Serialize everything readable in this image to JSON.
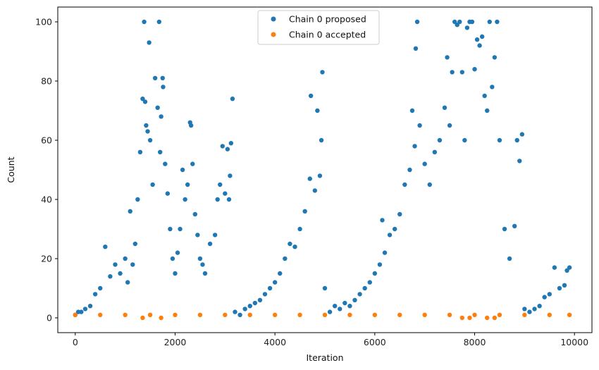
{
  "chart_data": {
    "type": "scatter",
    "title": "",
    "xlabel": "Iteration",
    "ylabel": "Count",
    "xlim": [
      -350,
      10350
    ],
    "ylim": [
      -5,
      105
    ],
    "xticks": [
      0,
      2000,
      4000,
      6000,
      8000,
      10000
    ],
    "yticks": [
      0,
      20,
      40,
      60,
      80,
      100
    ],
    "x_tick_labels": [
      "0",
      "2000",
      "4000",
      "6000",
      "8000",
      "10000"
    ],
    "y_tick_labels": [
      "0",
      "20",
      "40",
      "60",
      "80",
      "100"
    ],
    "grid": false,
    "legend": {
      "placement": "top-center"
    },
    "series": [
      {
        "name": "Chain 0 proposed",
        "color": "#1f77b4",
        "marker": "circle",
        "points": [
          [
            0,
            1
          ],
          [
            60,
            2
          ],
          [
            120,
            2
          ],
          [
            200,
            3
          ],
          [
            300,
            4
          ],
          [
            400,
            8
          ],
          [
            500,
            10
          ],
          [
            600,
            24
          ],
          [
            700,
            14
          ],
          [
            800,
            18
          ],
          [
            900,
            15
          ],
          [
            1000,
            20
          ],
          [
            1050,
            12
          ],
          [
            1100,
            36
          ],
          [
            1150,
            18
          ],
          [
            1200,
            25
          ],
          [
            1250,
            40
          ],
          [
            1300,
            56
          ],
          [
            1350,
            74
          ],
          [
            1380,
            100
          ],
          [
            1400,
            73
          ],
          [
            1420,
            65
          ],
          [
            1450,
            63
          ],
          [
            1480,
            93
          ],
          [
            1500,
            60
          ],
          [
            1550,
            45
          ],
          [
            1600,
            81
          ],
          [
            1650,
            71
          ],
          [
            1680,
            100
          ],
          [
            1700,
            56
          ],
          [
            1720,
            68
          ],
          [
            1750,
            81
          ],
          [
            1760,
            78
          ],
          [
            1800,
            52
          ],
          [
            1850,
            42
          ],
          [
            1900,
            30
          ],
          [
            1950,
            20
          ],
          [
            2000,
            15
          ],
          [
            2050,
            22
          ],
          [
            2100,
            30
          ],
          [
            2150,
            50
          ],
          [
            2200,
            40
          ],
          [
            2250,
            45
          ],
          [
            2300,
            66
          ],
          [
            2320,
            65
          ],
          [
            2350,
            52
          ],
          [
            2400,
            35
          ],
          [
            2450,
            28
          ],
          [
            2500,
            20
          ],
          [
            2550,
            18
          ],
          [
            2600,
            15
          ],
          [
            2700,
            25
          ],
          [
            2800,
            28
          ],
          [
            2850,
            40
          ],
          [
            2900,
            45
          ],
          [
            2950,
            58
          ],
          [
            3000,
            42
          ],
          [
            3050,
            57
          ],
          [
            3080,
            40
          ],
          [
            3100,
            48
          ],
          [
            3120,
            59
          ],
          [
            3150,
            74
          ],
          [
            3200,
            2
          ],
          [
            3300,
            1
          ],
          [
            3400,
            3
          ],
          [
            3500,
            4
          ],
          [
            3600,
            5
          ],
          [
            3700,
            6
          ],
          [
            3800,
            8
          ],
          [
            3900,
            10
          ],
          [
            4000,
            12
          ],
          [
            4100,
            15
          ],
          [
            4200,
            20
          ],
          [
            4300,
            25
          ],
          [
            4400,
            24
          ],
          [
            4500,
            30
          ],
          [
            4600,
            36
          ],
          [
            4700,
            47
          ],
          [
            4720,
            75
          ],
          [
            4800,
            43
          ],
          [
            4850,
            70
          ],
          [
            4900,
            48
          ],
          [
            4930,
            60
          ],
          [
            4950,
            83
          ],
          [
            5000,
            10
          ],
          [
            5100,
            2
          ],
          [
            5200,
            4
          ],
          [
            5300,
            3
          ],
          [
            5400,
            5
          ],
          [
            5500,
            4
          ],
          [
            5600,
            6
          ],
          [
            5700,
            8
          ],
          [
            5800,
            10
          ],
          [
            5900,
            12
          ],
          [
            6000,
            15
          ],
          [
            6100,
            18
          ],
          [
            6150,
            33
          ],
          [
            6200,
            22
          ],
          [
            6300,
            28
          ],
          [
            6400,
            30
          ],
          [
            6500,
            35
          ],
          [
            6600,
            45
          ],
          [
            6700,
            50
          ],
          [
            6750,
            70
          ],
          [
            6800,
            58
          ],
          [
            6820,
            91
          ],
          [
            6850,
            100
          ],
          [
            6900,
            65
          ],
          [
            7000,
            52
          ],
          [
            7100,
            45
          ],
          [
            7200,
            56
          ],
          [
            7300,
            60
          ],
          [
            7400,
            71
          ],
          [
            7450,
            88
          ],
          [
            7500,
            65
          ],
          [
            7550,
            83
          ],
          [
            7600,
            100
          ],
          [
            7650,
            99
          ],
          [
            7700,
            100
          ],
          [
            7750,
            83
          ],
          [
            7800,
            60
          ],
          [
            7850,
            98
          ],
          [
            7900,
            100
          ],
          [
            7950,
            100
          ],
          [
            8000,
            84
          ],
          [
            8050,
            94
          ],
          [
            8100,
            92
          ],
          [
            8150,
            95
          ],
          [
            8200,
            75
          ],
          [
            8250,
            70
          ],
          [
            8300,
            100
          ],
          [
            8350,
            78
          ],
          [
            8400,
            88
          ],
          [
            8450,
            100
          ],
          [
            8500,
            60
          ],
          [
            8600,
            30
          ],
          [
            8700,
            20
          ],
          [
            8800,
            31
          ],
          [
            8850,
            60
          ],
          [
            8900,
            53
          ],
          [
            8950,
            62
          ],
          [
            9000,
            3
          ],
          [
            9100,
            2
          ],
          [
            9200,
            3
          ],
          [
            9300,
            4
          ],
          [
            9400,
            7
          ],
          [
            9500,
            8
          ],
          [
            9600,
            17
          ],
          [
            9700,
            10
          ],
          [
            9800,
            11
          ],
          [
            9850,
            16
          ],
          [
            9900,
            17
          ]
        ]
      },
      {
        "name": "Chain 0 accepted",
        "color": "#ff7f0e",
        "marker": "circle",
        "points": [
          [
            0,
            1
          ],
          [
            500,
            1
          ],
          [
            1000,
            1
          ],
          [
            1350,
            0
          ],
          [
            1500,
            1
          ],
          [
            1720,
            0
          ],
          [
            2000,
            1
          ],
          [
            2500,
            1
          ],
          [
            3000,
            1
          ],
          [
            3500,
            1
          ],
          [
            4000,
            1
          ],
          [
            4500,
            1
          ],
          [
            5000,
            1
          ],
          [
            5500,
            1
          ],
          [
            6000,
            1
          ],
          [
            6500,
            1
          ],
          [
            7000,
            1
          ],
          [
            7500,
            1
          ],
          [
            7750,
            0
          ],
          [
            7900,
            0
          ],
          [
            8000,
            1
          ],
          [
            8250,
            0
          ],
          [
            8400,
            0
          ],
          [
            8500,
            1
          ],
          [
            9000,
            1
          ],
          [
            9500,
            1
          ],
          [
            9900,
            1
          ]
        ]
      }
    ]
  }
}
